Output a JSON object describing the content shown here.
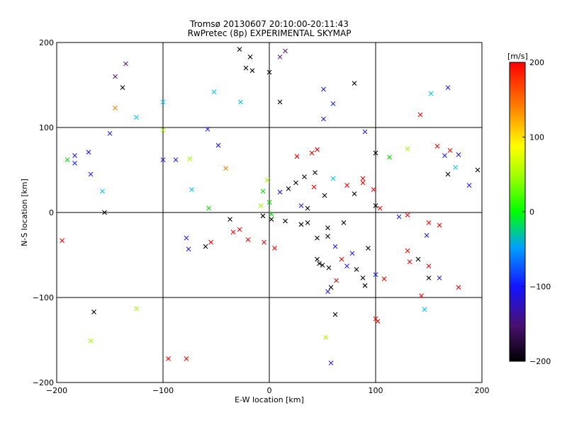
{
  "chart_data": {
    "type": "scatter",
    "title": "Tromsø 20130607 20:10:00-20:11:43",
    "subtitle": "RwPretec (8p) EXPERIMENTAL SKYMAP",
    "xlabel": "E-W location [km]",
    "ylabel": "N-S location [km]",
    "xlim": [
      -200,
      200
    ],
    "ylim": [
      -200,
      200
    ],
    "x_ticks": [
      -200,
      -100,
      0,
      100,
      200
    ],
    "y_ticks": [
      -200,
      -100,
      0,
      100,
      200
    ],
    "grid": true,
    "colorbar": {
      "unit_label": "[m/s]",
      "range": [
        -200,
        200
      ],
      "ticks": [
        200,
        100,
        0,
        -100,
        -200
      ],
      "colormap": [
        "#000000",
        "#6a0d8a",
        "#1f1fff",
        "#00d8ff",
        "#00ff00",
        "#ffff00",
        "#ff8000",
        "#ff0000"
      ]
    },
    "point_colors_by_velocity": {
      "-200": "#000000",
      "-150": "#5a1a7a",
      "-100": "#1f1fff",
      "-50": "#00c8ff",
      "0": "#00e000",
      "50": "#a0ff00",
      "100": "#ffff00",
      "150": "#ff8000",
      "200": "#ff0000"
    },
    "points": [
      {
        "x": -28,
        "y": 192,
        "v": -200,
        "m": "x"
      },
      {
        "x": -18,
        "y": 183,
        "v": -180,
        "m": "x"
      },
      {
        "x": 10,
        "y": 183,
        "v": -160,
        "m": "x"
      },
      {
        "x": 15,
        "y": 190,
        "v": -140,
        "m": "x"
      },
      {
        "x": -22,
        "y": 170,
        "v": -190,
        "m": "x"
      },
      {
        "x": -16,
        "y": 167,
        "v": -200,
        "m": "x"
      },
      {
        "x": -135,
        "y": 175,
        "v": -150,
        "m": "x"
      },
      {
        "x": -145,
        "y": 160,
        "v": -140,
        "m": "x"
      },
      {
        "x": -138,
        "y": 147,
        "v": -200,
        "m": "x"
      },
      {
        "x": -145,
        "y": 123,
        "v": 140,
        "m": "x"
      },
      {
        "x": 80,
        "y": 152,
        "v": -200,
        "m": "x"
      },
      {
        "x": 51,
        "y": 145,
        "v": -100,
        "m": "x"
      },
      {
        "x": 60,
        "y": 128,
        "v": -80,
        "m": "x"
      },
      {
        "x": 51,
        "y": 110,
        "v": -100,
        "m": "x"
      },
      {
        "x": 168,
        "y": 147,
        "v": -110,
        "m": "x"
      },
      {
        "x": 152,
        "y": 140,
        "v": -40,
        "m": "x"
      },
      {
        "x": 142,
        "y": 115,
        "v": 200,
        "m": "x"
      },
      {
        "x": 90,
        "y": 95,
        "v": -110,
        "m": "x"
      },
      {
        "x": 158,
        "y": 78,
        "v": 200,
        "m": "x"
      },
      {
        "x": 170,
        "y": 73,
        "v": 180,
        "m": "x"
      },
      {
        "x": 178,
        "y": 68,
        "v": -100,
        "m": "x"
      },
      {
        "x": 165,
        "y": 67,
        "v": -120,
        "m": "x"
      },
      {
        "x": 168,
        "y": 45,
        "v": -200,
        "m": "x"
      },
      {
        "x": 175,
        "y": 53,
        "v": -60,
        "m": "x"
      },
      {
        "x": 196,
        "y": 50,
        "v": -200,
        "m": "x"
      },
      {
        "x": 188,
        "y": 32,
        "v": -100,
        "m": "x"
      },
      {
        "x": 130,
        "y": 75,
        "v": 40,
        "m": "x"
      },
      {
        "x": 113,
        "y": 65,
        "v": 20,
        "m": "x"
      },
      {
        "x": -183,
        "y": 58,
        "v": -80,
        "m": "x"
      },
      {
        "x": -190,
        "y": 62,
        "v": 20,
        "m": "x"
      },
      {
        "x": -170,
        "y": 71,
        "v": -120,
        "m": "x"
      },
      {
        "x": -150,
        "y": 93,
        "v": -100,
        "m": "x"
      },
      {
        "x": -168,
        "y": 45,
        "v": -90,
        "m": "x"
      },
      {
        "x": -157,
        "y": 25,
        "v": -40,
        "m": "x"
      },
      {
        "x": -125,
        "y": 112,
        "v": -60,
        "m": "x"
      },
      {
        "x": -100,
        "y": 62,
        "v": -80,
        "m": "x"
      },
      {
        "x": -58,
        "y": 98,
        "v": -120,
        "m": "x"
      },
      {
        "x": -48,
        "y": 79,
        "v": -120,
        "m": "x"
      },
      {
        "x": -41,
        "y": 52,
        "v": 140,
        "m": "x"
      },
      {
        "x": -100,
        "y": 97,
        "v": 30,
        "m": "x"
      },
      {
        "x": -88,
        "y": 62,
        "v": -90,
        "m": "x"
      },
      {
        "x": -75,
        "y": 63,
        "v": 70,
        "m": "x"
      },
      {
        "x": 100,
        "y": 70,
        "v": -200,
        "m": "x"
      },
      {
        "x": 98,
        "y": 27,
        "v": 200,
        "m": "x"
      },
      {
        "x": 88,
        "y": 35,
        "v": 190,
        "m": "x"
      },
      {
        "x": 88,
        "y": 40,
        "v": 200,
        "m": "x"
      },
      {
        "x": 73,
        "y": 32,
        "v": 200,
        "m": "x"
      },
      {
        "x": 80,
        "y": 22,
        "v": -200,
        "m": "x"
      },
      {
        "x": 60,
        "y": 40,
        "v": -60,
        "m": "x"
      },
      {
        "x": 43,
        "y": 47,
        "v": -200,
        "m": "x"
      },
      {
        "x": 25,
        "y": 35,
        "v": -200,
        "m": "x"
      },
      {
        "x": 33,
        "y": 42,
        "v": -200,
        "m": "x"
      },
      {
        "x": 42,
        "y": 30,
        "v": 200,
        "m": "x"
      },
      {
        "x": 52,
        "y": 20,
        "v": -200,
        "m": "x"
      },
      {
        "x": 18,
        "y": 28,
        "v": -200,
        "m": "x"
      },
      {
        "x": 10,
        "y": 24,
        "v": -100,
        "m": "x"
      },
      {
        "x": 36,
        "y": 5,
        "v": -200,
        "m": "x"
      },
      {
        "x": 36,
        "y": -12,
        "v": -200,
        "m": "x"
      },
      {
        "x": 30,
        "y": -14,
        "v": -200,
        "m": "x"
      },
      {
        "x": 15,
        "y": -10,
        "v": -200,
        "m": "x"
      },
      {
        "x": 2,
        "y": -8,
        "v": -200,
        "m": "x"
      },
      {
        "x": -6,
        "y": -4,
        "v": -200,
        "m": "x"
      },
      {
        "x": 70,
        "y": -12,
        "v": -200,
        "m": "x"
      },
      {
        "x": 55,
        "y": -18,
        "v": -200,
        "m": "x"
      },
      {
        "x": 100,
        "y": 8,
        "v": -200,
        "m": "x"
      },
      {
        "x": 104,
        "y": 5,
        "v": 200,
        "m": "x"
      },
      {
        "x": 122,
        "y": -5,
        "v": -110,
        "m": "x"
      },
      {
        "x": 130,
        "y": -3,
        "v": 200,
        "m": "x"
      },
      {
        "x": 130,
        "y": -45,
        "v": 200,
        "m": "x"
      },
      {
        "x": 140,
        "y": -55,
        "v": -200,
        "m": "x"
      },
      {
        "x": 150,
        "y": -63,
        "v": 200,
        "m": "x"
      },
      {
        "x": 132,
        "y": -58,
        "v": 200,
        "m": "x"
      },
      {
        "x": 148,
        "y": -27,
        "v": -120,
        "m": "x"
      },
      {
        "x": 150,
        "y": -12,
        "v": 200,
        "m": "x"
      },
      {
        "x": 160,
        "y": -15,
        "v": 200,
        "m": "x"
      },
      {
        "x": 150,
        "y": -77,
        "v": -200,
        "m": "x"
      },
      {
        "x": 160,
        "y": -77,
        "v": -90,
        "m": "x"
      },
      {
        "x": 178,
        "y": -88,
        "v": 200,
        "m": "x"
      },
      {
        "x": 143,
        "y": -98,
        "v": 200,
        "m": "x"
      },
      {
        "x": 146,
        "y": -114,
        "v": -60,
        "m": "x"
      },
      {
        "x": 100,
        "y": -125,
        "v": 200,
        "m": "x"
      },
      {
        "x": 102,
        "y": -128,
        "v": 200,
        "m": "x"
      },
      {
        "x": 73,
        "y": -63,
        "v": -100,
        "m": "x"
      },
      {
        "x": 82,
        "y": -67,
        "v": -200,
        "m": "x"
      },
      {
        "x": 88,
        "y": -77,
        "v": -200,
        "m": "x"
      },
      {
        "x": 90,
        "y": -86,
        "v": -200,
        "m": "x"
      },
      {
        "x": 100,
        "y": -73,
        "v": -80,
        "m": "x"
      },
      {
        "x": 108,
        "y": -78,
        "v": 200,
        "m": "x"
      },
      {
        "x": 78,
        "y": -48,
        "v": -100,
        "m": "x"
      },
      {
        "x": 68,
        "y": -55,
        "v": 200,
        "m": "x"
      },
      {
        "x": 45,
        "y": -55,
        "v": -200,
        "m": "x"
      },
      {
        "x": 47,
        "y": -60,
        "v": -200,
        "m": "x"
      },
      {
        "x": 50,
        "y": -62,
        "v": -200,
        "m": "x"
      },
      {
        "x": 56,
        "y": -65,
        "v": -200,
        "m": "x"
      },
      {
        "x": 63,
        "y": -80,
        "v": 200,
        "m": "x"
      },
      {
        "x": 58,
        "y": -88,
        "v": -200,
        "m": "x"
      },
      {
        "x": 55,
        "y": -93,
        "v": -110,
        "m": "x"
      },
      {
        "x": 62,
        "y": -120,
        "v": -200,
        "m": "x"
      },
      {
        "x": 58,
        "y": -177,
        "v": -110,
        "m": "x"
      },
      {
        "x": 53,
        "y": -147,
        "v": 30,
        "m": "x"
      },
      {
        "x": 45,
        "y": -30,
        "v": -200,
        "m": "x"
      },
      {
        "x": 55,
        "y": -28,
        "v": -200,
        "m": "x"
      },
      {
        "x": 62,
        "y": -40,
        "v": -100,
        "m": "x"
      },
      {
        "x": 93,
        "y": -42,
        "v": -200,
        "m": "x"
      },
      {
        "x": -155,
        "y": 0,
        "v": -180,
        "m": "x"
      },
      {
        "x": -195,
        "y": -33,
        "v": 200,
        "m": "x"
      },
      {
        "x": -125,
        "y": -113,
        "v": 30,
        "m": "x"
      },
      {
        "x": -165,
        "y": -117,
        "v": -200,
        "m": "x"
      },
      {
        "x": -168,
        "y": -151,
        "v": 30,
        "m": "x"
      },
      {
        "x": -95,
        "y": -172,
        "v": 200,
        "m": "x"
      },
      {
        "x": -78,
        "y": -172,
        "v": 200,
        "m": "x"
      },
      {
        "x": -55,
        "y": -35,
        "v": 200,
        "m": "x"
      },
      {
        "x": -60,
        "y": -40,
        "v": -200,
        "m": "x"
      },
      {
        "x": -78,
        "y": -30,
        "v": -110,
        "m": "x"
      },
      {
        "x": -76,
        "y": -43,
        "v": -120,
        "m": "x"
      },
      {
        "x": -28,
        "y": -20,
        "v": 200,
        "m": "x"
      },
      {
        "x": -34,
        "y": -23,
        "v": 200,
        "m": "x"
      },
      {
        "x": -20,
        "y": -32,
        "v": 200,
        "m": "x"
      },
      {
        "x": -5,
        "y": -35,
        "v": 200,
        "m": "x"
      },
      {
        "x": 5,
        "y": -42,
        "v": 200,
        "m": "x"
      },
      {
        "x": -2,
        "y": 38,
        "v": 30,
        "m": "x"
      },
      {
        "x": -6,
        "y": 25,
        "v": 10,
        "m": "x"
      },
      {
        "x": 0,
        "y": 12,
        "v": -20,
        "m": "x"
      },
      {
        "x": 2,
        "y": -2,
        "v": 0,
        "m": "x"
      },
      {
        "x": -8,
        "y": 8,
        "v": 40,
        "m": "x"
      },
      {
        "x": -73,
        "y": 27,
        "v": -40,
        "m": "x"
      },
      {
        "x": -57,
        "y": 5,
        "v": 20,
        "m": "x"
      },
      {
        "x": -37,
        "y": -8,
        "v": -200,
        "m": "x"
      },
      {
        "x": 30,
        "y": 8,
        "v": -120,
        "m": "x"
      },
      {
        "x": 26,
        "y": 66,
        "v": 200,
        "m": "x"
      },
      {
        "x": 40,
        "y": 70,
        "v": 200,
        "m": "x"
      },
      {
        "x": 45,
        "y": 74,
        "v": 200,
        "m": "x"
      },
      {
        "x": 10,
        "y": 130,
        "v": -200,
        "m": "x"
      },
      {
        "x": -27,
        "y": 130,
        "v": -50,
        "m": "x"
      },
      {
        "x": -52,
        "y": 142,
        "v": -60,
        "m": "x"
      },
      {
        "x": -100,
        "y": 130,
        "v": -60,
        "m": "x"
      },
      {
        "x": -183,
        "y": 67,
        "v": -120,
        "m": "x"
      },
      {
        "x": 0,
        "y": 165,
        "v": -200,
        "m": "x"
      }
    ]
  }
}
